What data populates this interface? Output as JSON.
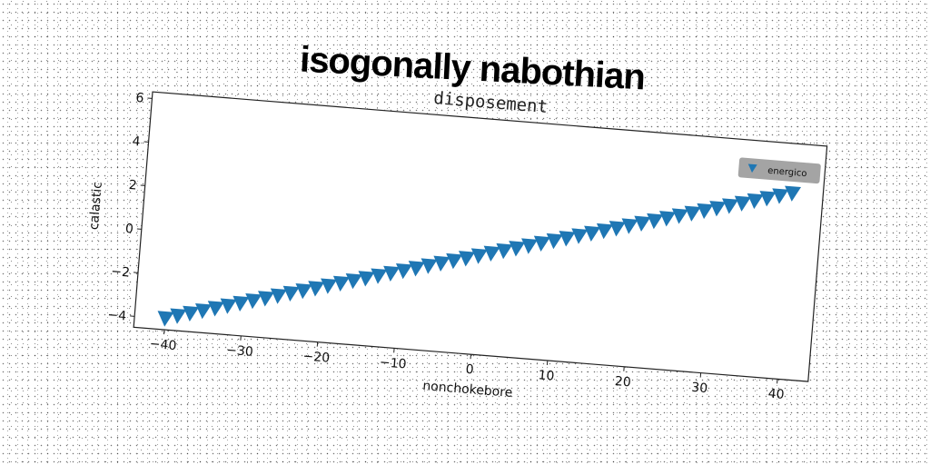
{
  "figure": {
    "title": "isogonally nabothian"
  },
  "chart_data": {
    "type": "scatter",
    "title": "disposement",
    "xlabel": "nonchokebore",
    "ylabel": "calastic",
    "xlim": [
      -44,
      44
    ],
    "ylim": [
      -4.5,
      6.3
    ],
    "xticks": [
      -40,
      -30,
      -20,
      -10,
      0,
      10,
      20,
      30,
      40
    ],
    "yticks": [
      -4,
      -2,
      0,
      2,
      4,
      6
    ],
    "grid": false,
    "legend_position": "top-right",
    "series": [
      {
        "name": "energico",
        "marker": "triangle-down",
        "color": "#1f77b4",
        "x": [
          -40,
          -38.4,
          -36.8,
          -35.2,
          -33.6,
          -32,
          -30.4,
          -28.8,
          -27.2,
          -25.6,
          -24,
          -22.4,
          -20.8,
          -19.2,
          -17.6,
          -16,
          -14.4,
          -12.8,
          -11.2,
          -9.6,
          -8,
          -6.4,
          -4.8,
          -3.2,
          -1.6,
          0,
          1.6,
          3.2,
          4.8,
          6.4,
          8,
          9.6,
          11.2,
          12.8,
          14.4,
          16,
          17.6,
          19.2,
          20.8,
          22.4,
          24,
          25.6,
          27.2,
          28.8,
          30.4,
          32,
          33.6,
          35.2,
          36.8,
          38.4,
          40
        ],
        "y": [
          -4,
          -3.84,
          -3.68,
          -3.52,
          -3.36,
          -3.2,
          -3.04,
          -2.88,
          -2.72,
          -2.56,
          -2.4,
          -2.24,
          -2.08,
          -1.92,
          -1.76,
          -1.6,
          -1.44,
          -1.28,
          -1.12,
          -0.96,
          -0.8,
          -0.64,
          -0.48,
          -0.32,
          -0.16,
          0,
          0.16,
          0.32,
          0.48,
          0.64,
          0.8,
          0.96,
          1.12,
          1.28,
          1.44,
          1.6,
          1.76,
          1.92,
          2.08,
          2.24,
          2.4,
          2.56,
          2.72,
          2.88,
          3.04,
          3.2,
          3.36,
          3.52,
          3.68,
          3.84,
          4
        ]
      }
    ]
  }
}
